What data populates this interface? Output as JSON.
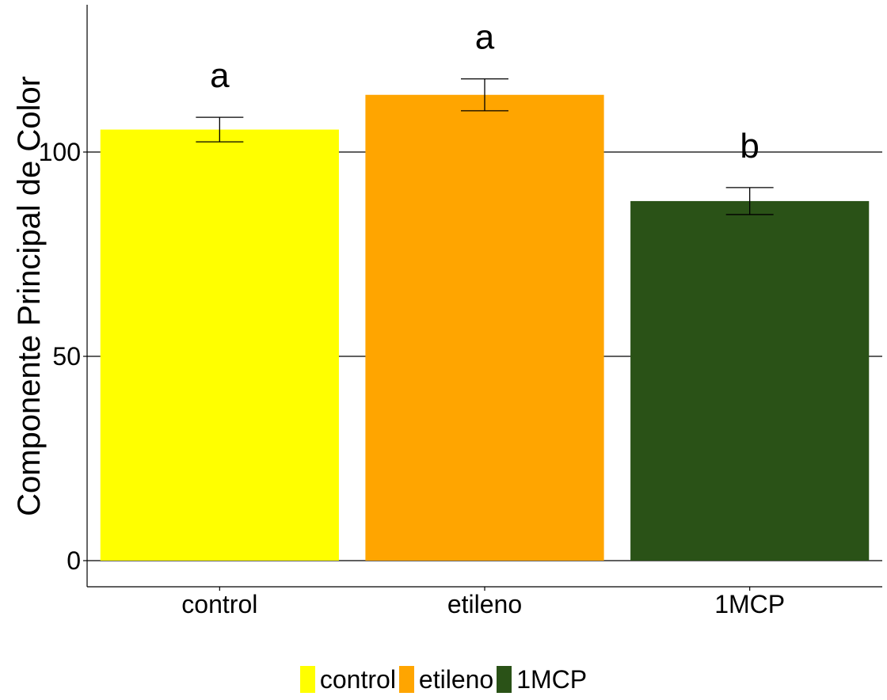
{
  "chart_data": {
    "type": "bar",
    "categories": [
      "control",
      "etileno",
      "1MCP"
    ],
    "values": [
      105.5,
      114,
      88
    ],
    "errors": [
      3,
      3.9,
      3.3
    ],
    "significance_letters": [
      "a",
      "a",
      "b"
    ],
    "colors": [
      "#ffff00",
      "#ffa500",
      "#2a5217"
    ],
    "ylabel": "Componente Principal de Color",
    "xlabel": "",
    "ylim": [
      -6.5,
      136
    ],
    "yticks": [
      0,
      50,
      100
    ],
    "grid": "horizontal major",
    "legend": {
      "position": "bottom",
      "entries": [
        "control",
        "etileno",
        "1MCP"
      ]
    }
  }
}
